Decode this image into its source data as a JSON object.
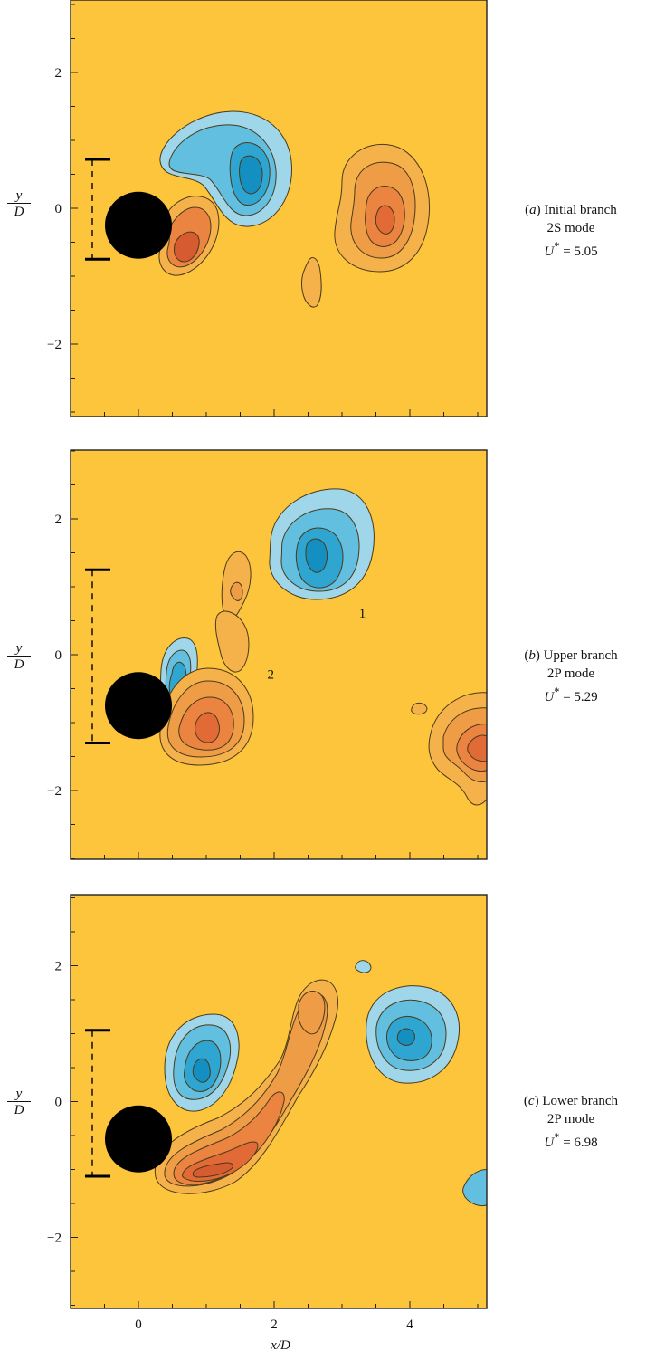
{
  "colors": {
    "background": "#fdc53b",
    "negative_vorticity": [
      "#9fd6ea",
      "#62bfe0",
      "#2fa6d2",
      "#148fc2"
    ],
    "positive_vorticity": [
      "#f5b14a",
      "#ef9c47",
      "#ea8440",
      "#e16a36",
      "#d65b30"
    ],
    "cylinder": "#000000",
    "contour_line": "#4a3a1a"
  },
  "axes": {
    "xlabel": "x/D",
    "ylabel_top": "y",
    "ylabel_bottom": "D",
    "x_ticks": [
      "0",
      "2",
      "4"
    ],
    "y_ticks": [
      "2",
      "0",
      "−2"
    ],
    "xlim": [
      -1,
      5
    ],
    "ylim": [
      -3,
      3
    ]
  },
  "panels": [
    {
      "id": "a",
      "caption_letter": "(a)",
      "caption_branch": "Initial branch",
      "caption_mode": "2S mode",
      "caption_ustar_symbol": "U",
      "caption_ustar_value": "= 5.05",
      "cylinder_center": [
        0,
        -0.25
      ],
      "amplitude_bar": [
        0.72,
        -0.75
      ],
      "vortex_labels": []
    },
    {
      "id": "b",
      "caption_letter": "(b)",
      "caption_branch": "Upper branch",
      "caption_mode": "2P mode",
      "caption_ustar_symbol": "U",
      "caption_ustar_value": "= 5.29",
      "cylinder_center": [
        0,
        -0.75
      ],
      "amplitude_bar": [
        1.25,
        -1.3
      ],
      "vortex_labels": [
        {
          "text": "1",
          "x": 3.3,
          "y": 0.55
        },
        {
          "text": "2",
          "x": 1.95,
          "y": -0.35
        }
      ]
    },
    {
      "id": "c",
      "caption_letter": "(c)",
      "caption_branch": "Lower branch",
      "caption_mode": "2P mode",
      "caption_ustar_symbol": "U",
      "caption_ustar_value": "= 6.98",
      "cylinder_center": [
        0,
        -0.55
      ],
      "amplitude_bar": [
        1.05,
        -1.1
      ],
      "vortex_labels": []
    }
  ]
}
